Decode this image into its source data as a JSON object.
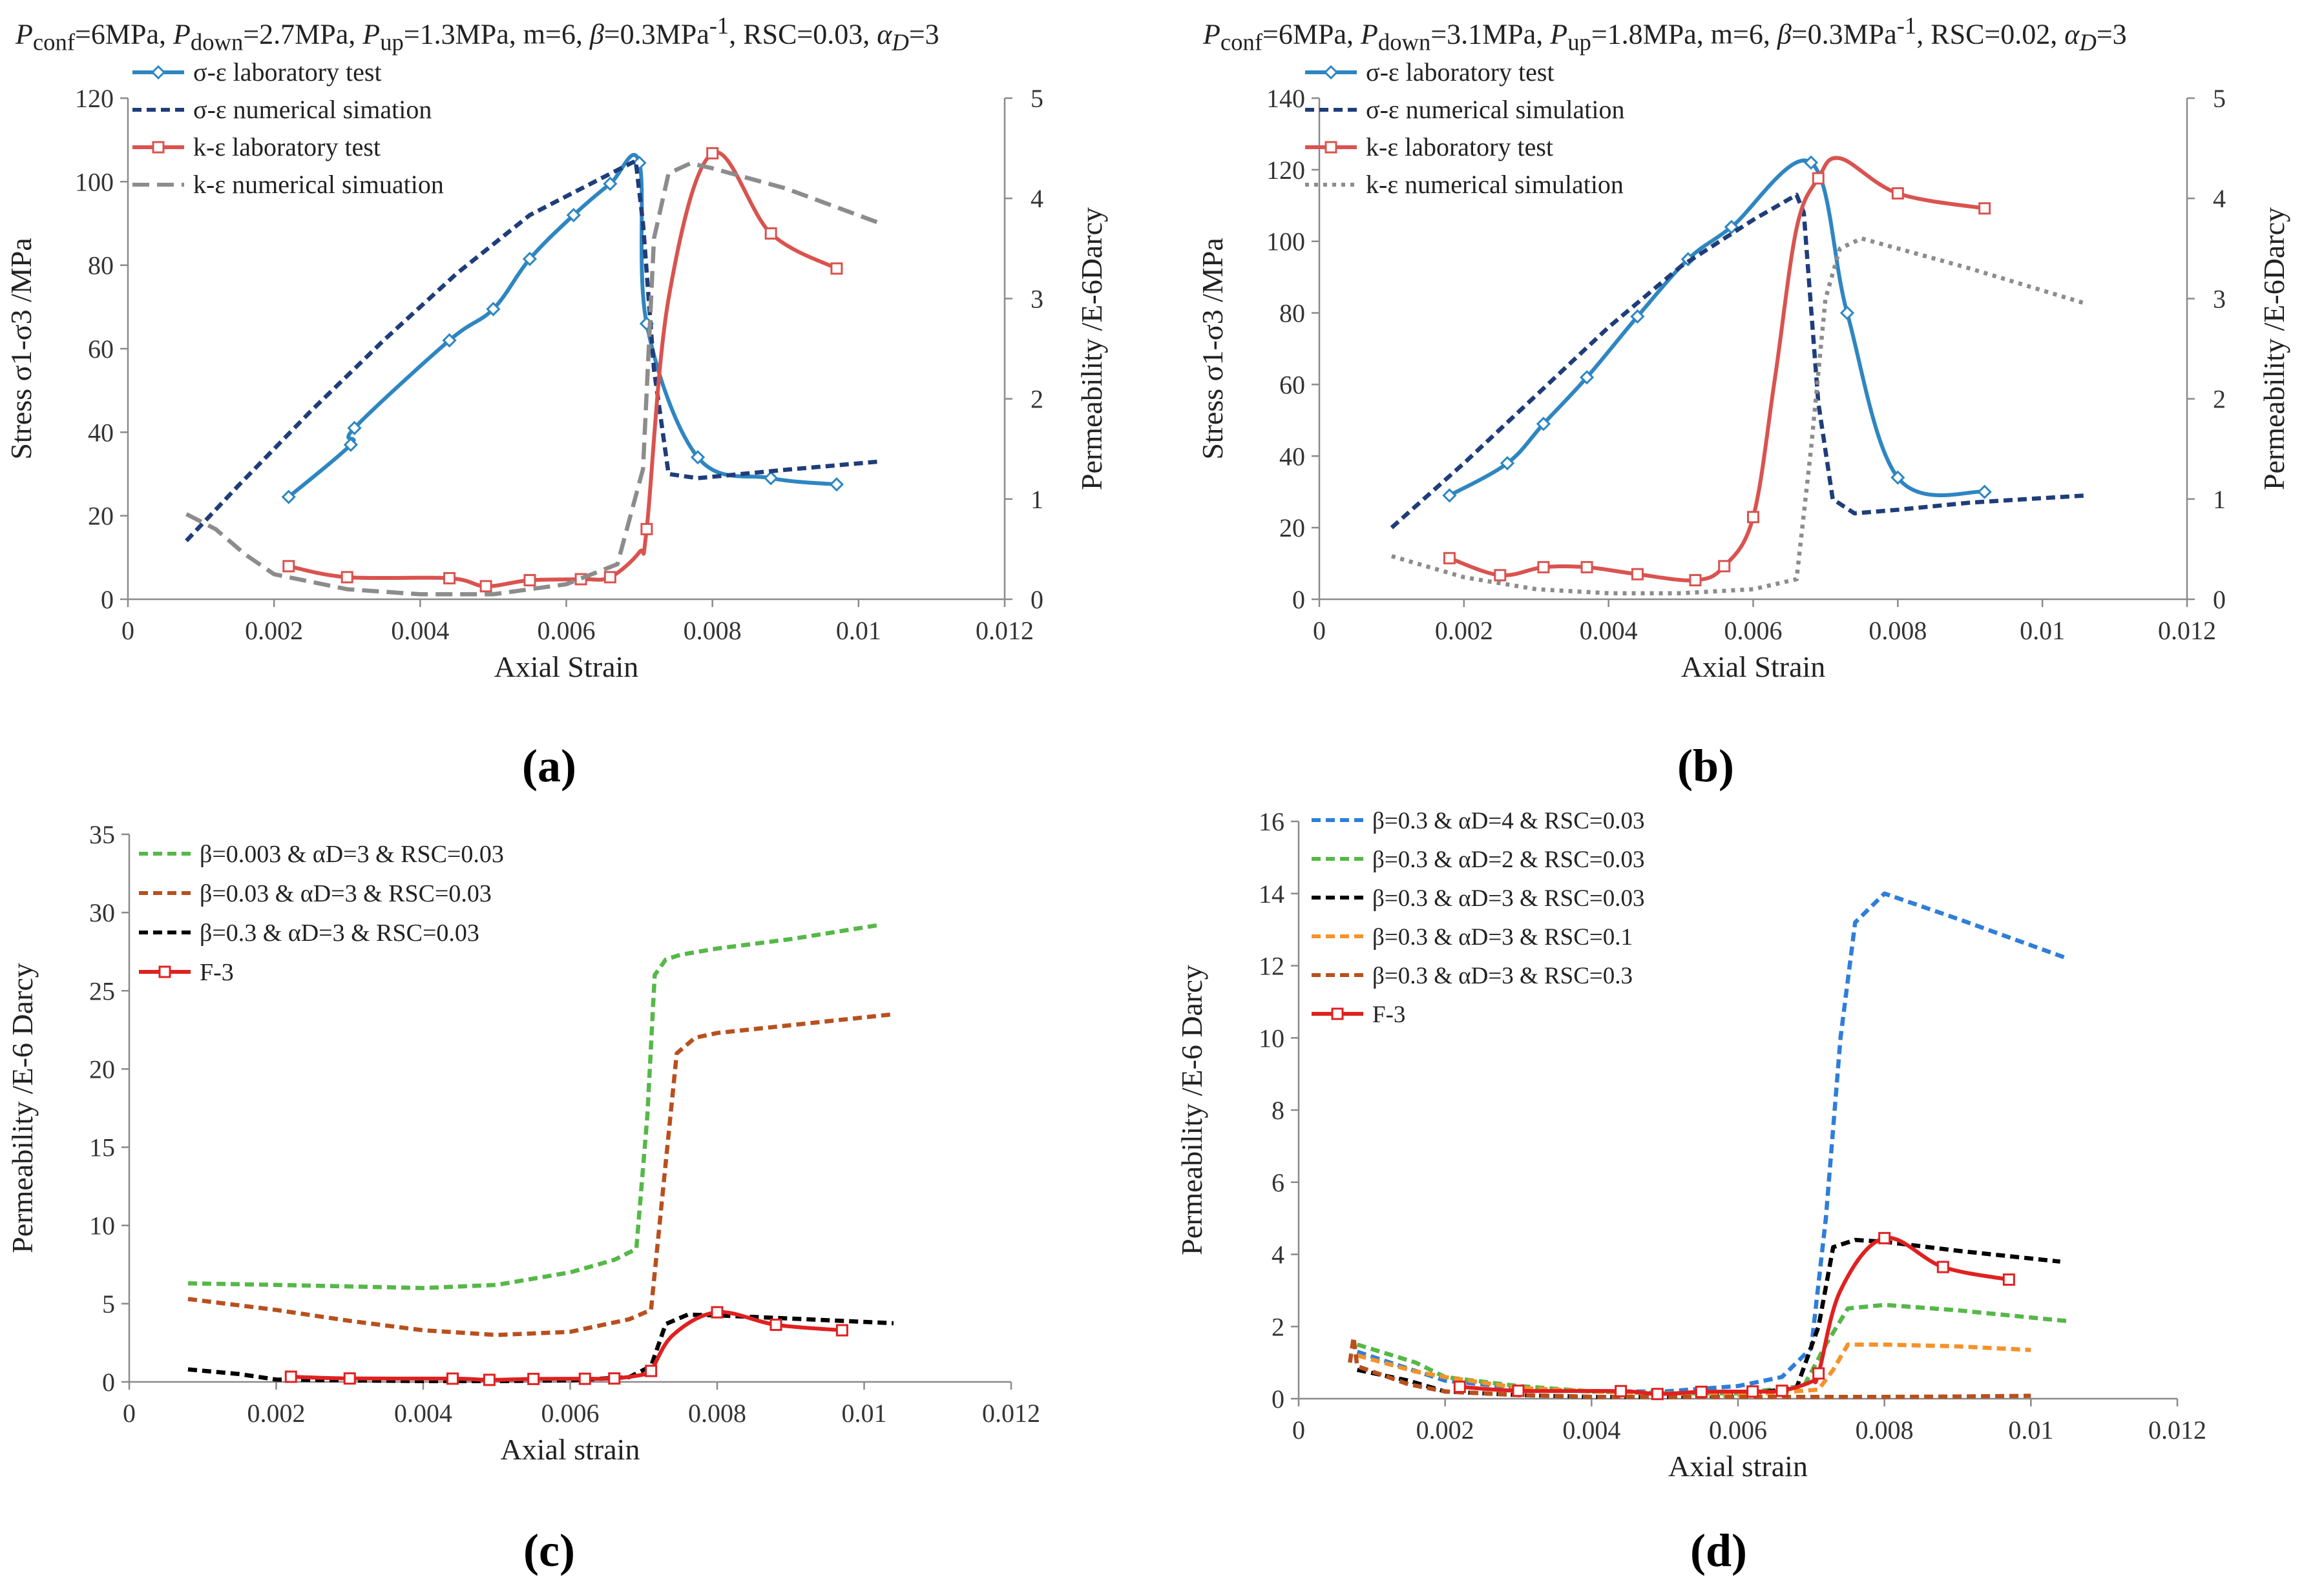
{
  "captions": [
    "(a)",
    "(b)",
    "(c)",
    "(d)"
  ],
  "headers": {
    "a": {
      "conf": "6MPa",
      "down": "2.7MPa",
      "up": "1.3MPa",
      "m": "m=6",
      "beta": "0.3MPa",
      "beta_exp": "-1",
      "rsc": "RSC=0.03",
      "alpha": "3"
    },
    "b": {
      "conf": "6MPa",
      "down": "3.1MPa",
      "up": "1.8MPa",
      "m": "m=6",
      "beta": "0.3MPa",
      "beta_exp": "-1",
      "rsc": "RSC=0.02",
      "alpha": "3"
    }
  },
  "chart_data": [
    {
      "id": "a",
      "type": "line",
      "xlabel": "Axial Strain",
      "ylabel": "Stress σ1-σ3 /MPa",
      "y2label": "Permeability  /E-6Darcy",
      "xlim": [
        0,
        0.012
      ],
      "ylim": [
        0,
        120
      ],
      "y2lim": [
        0,
        5
      ],
      "xticks": [
        0,
        0.002,
        0.004,
        0.006,
        0.008,
        0.01,
        0.012
      ],
      "xtick_labels": [
        "0",
        "0.002",
        "0.004",
        "0.006",
        "0.008",
        "0.01",
        "0.012"
      ],
      "yticks": [
        0,
        20,
        40,
        60,
        80,
        100,
        120
      ],
      "y2ticks": [
        0,
        1,
        2,
        3,
        4,
        5
      ],
      "series": [
        {
          "name": "σ-ε laboratory test",
          "color": "#2e86c1",
          "dash": "solid",
          "marker": "diamond",
          "axis": "y1",
          "smooth": true,
          "x": [
            0.0022,
            0.00305,
            0.0031,
            0.0044,
            0.005,
            0.0055,
            0.0061,
            0.0066,
            0.007,
            0.0071,
            0.0078,
            0.0088,
            0.0097
          ],
          "y": [
            24.5,
            37,
            41,
            62,
            69.5,
            81.5,
            92,
            99.5,
            104.5,
            66,
            34,
            29,
            27.5
          ],
          "mx": [
            0.0022,
            0.00305,
            0.0031,
            0.0044,
            0.005,
            0.0055,
            0.0061,
            0.0066,
            0.007,
            0.0071,
            0.0078,
            0.0088,
            0.0097
          ],
          "my": [
            24.5,
            37,
            41,
            62,
            69.5,
            81.5,
            92,
            99.5,
            104.5,
            66,
            34,
            29,
            27.5
          ]
        },
        {
          "name": "σ-ε numerical simation",
          "color": "#1f3d7a",
          "dash": "dash",
          "marker": "none",
          "axis": "y1",
          "x": [
            0.0008,
            0.0015,
            0.0025,
            0.0035,
            0.0045,
            0.0055,
            0.0065,
            0.00695,
            0.00705,
            0.0072,
            0.0074,
            0.0078,
            0.009,
            0.0103
          ],
          "y": [
            14,
            27,
            45,
            62,
            78,
            92,
            101,
            105,
            90,
            55,
            30,
            29,
            31,
            33
          ]
        },
        {
          "name": "k-ε laboratory test",
          "color": "#d9534f",
          "dash": "solid",
          "marker": "square",
          "axis": "y2",
          "smooth": true,
          "x": [
            0.0022,
            0.003,
            0.0044,
            0.0049,
            0.0055,
            0.0062,
            0.0066,
            0.007,
            0.0071,
            0.0074,
            0.008,
            0.0088,
            0.0097
          ],
          "y": [
            0.33,
            0.22,
            0.21,
            0.13,
            0.19,
            0.2,
            0.22,
            0.47,
            0.7,
            3.0,
            4.45,
            3.65,
            3.3
          ],
          "mx": [
            0.0022,
            0.003,
            0.0044,
            0.0049,
            0.0055,
            0.0062,
            0.0066,
            0.0071,
            0.008,
            0.0088,
            0.0097
          ],
          "my": [
            0.33,
            0.22,
            0.21,
            0.13,
            0.19,
            0.2,
            0.22,
            0.7,
            4.45,
            3.65,
            3.3
          ]
        },
        {
          "name": "k-ε numerical simuation",
          "color": "#8c8c8c",
          "dash": "longdash",
          "marker": "none",
          "axis": "y2",
          "x": [
            0.0008,
            0.0012,
            0.0016,
            0.002,
            0.003,
            0.004,
            0.005,
            0.006,
            0.0067,
            0.00705,
            0.0072,
            0.0074,
            0.0077,
            0.008,
            0.009,
            0.0103
          ],
          "y": [
            0.85,
            0.7,
            0.45,
            0.25,
            0.1,
            0.05,
            0.05,
            0.15,
            0.35,
            1.3,
            3.6,
            4.25,
            4.35,
            4.3,
            4.1,
            3.75
          ]
        }
      ]
    },
    {
      "id": "b",
      "type": "line",
      "xlabel": "Axial Strain",
      "ylabel": "Stress σ1-σ3 /MPa",
      "y2label": "Permeability  /E-6Darcy",
      "xlim": [
        0,
        0.012
      ],
      "ylim": [
        0,
        140
      ],
      "y2lim": [
        0,
        5
      ],
      "xticks": [
        0,
        0.002,
        0.004,
        0.006,
        0.008,
        0.01,
        0.012
      ],
      "xtick_labels": [
        "0",
        "0.002",
        "0.004",
        "0.006",
        "0.008",
        "0.01",
        "0.012"
      ],
      "yticks": [
        0,
        20,
        40,
        60,
        80,
        100,
        120,
        140
      ],
      "y2ticks": [
        0,
        1,
        2,
        3,
        4,
        5
      ],
      "series": [
        {
          "name": "σ-ε laboratory test",
          "color": "#2e86c1",
          "dash": "solid",
          "marker": "diamond",
          "axis": "y1",
          "smooth": true,
          "x": [
            0.0018,
            0.0026,
            0.0031,
            0.0037,
            0.0044,
            0.0051,
            0.0057,
            0.0068,
            0.0073,
            0.008,
            0.0092
          ],
          "y": [
            29,
            38,
            49,
            62,
            79,
            95,
            104,
            122,
            80,
            34,
            30
          ],
          "mx": [
            0.0018,
            0.0026,
            0.0031,
            0.0037,
            0.0044,
            0.0051,
            0.0057,
            0.0068,
            0.0073,
            0.008,
            0.0092
          ],
          "my": [
            29,
            38,
            49,
            62,
            79,
            95,
            104,
            122,
            80,
            34,
            30
          ]
        },
        {
          "name": "σ-ε numerical simulation",
          "color": "#1f3d7a",
          "dash": "dash",
          "marker": "none",
          "axis": "y1",
          "x": [
            0.001,
            0.002,
            0.003,
            0.004,
            0.005,
            0.006,
            0.0066,
            0.0067,
            0.0069,
            0.0071,
            0.0074,
            0.008,
            0.009,
            0.0106
          ],
          "y": [
            20,
            38,
            57,
            76,
            93,
            106,
            113,
            108,
            55,
            28,
            24,
            25,
            27,
            29
          ]
        },
        {
          "name": "k-ε laboratory test",
          "color": "#d9534f",
          "dash": "solid",
          "marker": "square",
          "axis": "y2",
          "smooth": true,
          "x": [
            0.0018,
            0.0025,
            0.0031,
            0.0037,
            0.0044,
            0.0052,
            0.0056,
            0.006,
            0.0063,
            0.0066,
            0.0069,
            0.0072,
            0.008,
            0.0092
          ],
          "y": [
            0.41,
            0.24,
            0.32,
            0.32,
            0.25,
            0.19,
            0.33,
            0.82,
            2.2,
            3.7,
            4.2,
            4.4,
            4.05,
            3.9
          ],
          "mx": [
            0.0018,
            0.0025,
            0.0031,
            0.0037,
            0.0044,
            0.0052,
            0.0056,
            0.006,
            0.0069,
            0.008,
            0.0092
          ],
          "my": [
            0.41,
            0.24,
            0.32,
            0.32,
            0.25,
            0.19,
            0.33,
            0.82,
            4.2,
            4.05,
            3.9
          ]
        },
        {
          "name": "k-ε numerical simulation",
          "color": "#8c8c8c",
          "dash": "dot",
          "marker": "none",
          "axis": "y2",
          "x": [
            0.001,
            0.002,
            0.003,
            0.004,
            0.005,
            0.006,
            0.0066,
            0.0068,
            0.007,
            0.0072,
            0.0075,
            0.008,
            0.009,
            0.0106
          ],
          "y": [
            0.43,
            0.22,
            0.1,
            0.06,
            0.06,
            0.1,
            0.2,
            1.5,
            3.0,
            3.5,
            3.6,
            3.5,
            3.3,
            2.95
          ]
        }
      ]
    },
    {
      "id": "c",
      "type": "line",
      "xlabel": "Axial strain",
      "ylabel": "Permeability /E-6 Darcy",
      "xlim": [
        0,
        0.012
      ],
      "ylim": [
        0,
        35
      ],
      "xticks": [
        0,
        0.002,
        0.004,
        0.006,
        0.008,
        0.01,
        0.012
      ],
      "xtick_labels": [
        "0",
        "0.002",
        "0.004",
        "0.006",
        "0.008",
        "0.01",
        "0.012"
      ],
      "yticks": [
        0,
        5,
        10,
        15,
        20,
        25,
        30,
        35
      ],
      "series": [
        {
          "name": "β=0.003 & αD=3 & RSC=0.03",
          "color": "#55b848",
          "dash": "dash",
          "marker": "none",
          "x": [
            0.0008,
            0.002,
            0.003,
            0.004,
            0.005,
            0.006,
            0.0066,
            0.0069,
            0.00705,
            0.00715,
            0.0073,
            0.0075,
            0.008,
            0.009,
            0.0102
          ],
          "y": [
            6.3,
            6.2,
            6.1,
            6.0,
            6.2,
            7.0,
            7.8,
            8.5,
            17,
            26,
            27,
            27.3,
            27.7,
            28.3,
            29.2
          ]
        },
        {
          "name": "β=0.03 & αD=3 & RSC=0.03",
          "color": "#b8501e",
          "dash": "dash",
          "marker": "none",
          "x": [
            0.0008,
            0.002,
            0.003,
            0.004,
            0.005,
            0.006,
            0.0068,
            0.0071,
            0.0073,
            0.00745,
            0.0077,
            0.008,
            0.009,
            0.0104
          ],
          "y": [
            5.3,
            4.6,
            3.9,
            3.3,
            3.0,
            3.2,
            4.0,
            4.6,
            14,
            21,
            22,
            22.3,
            22.8,
            23.5
          ]
        },
        {
          "name": "β=0.3 & αD=3 & RSC=0.03",
          "color": "#000000",
          "dash": "dash",
          "marker": "none",
          "x": [
            0.0008,
            0.0015,
            0.002,
            0.003,
            0.004,
            0.005,
            0.006,
            0.0068,
            0.0071,
            0.0073,
            0.0076,
            0.008,
            0.009,
            0.0104
          ],
          "y": [
            0.8,
            0.5,
            0.15,
            0.1,
            0.05,
            0.05,
            0.1,
            0.3,
            1.0,
            3.7,
            4.3,
            4.25,
            4.05,
            3.75
          ]
        },
        {
          "name": "F-3",
          "color": "#e02020",
          "dash": "solid",
          "marker": "square",
          "smooth": true,
          "x": [
            0.0022,
            0.003,
            0.0044,
            0.0049,
            0.0055,
            0.0062,
            0.0066,
            0.007,
            0.0071,
            0.0074,
            0.008,
            0.0088,
            0.0097
          ],
          "y": [
            0.33,
            0.22,
            0.21,
            0.13,
            0.19,
            0.2,
            0.22,
            0.47,
            0.7,
            3.0,
            4.45,
            3.65,
            3.3
          ],
          "mx": [
            0.0022,
            0.003,
            0.0044,
            0.0049,
            0.0055,
            0.0062,
            0.0066,
            0.0071,
            0.008,
            0.0088,
            0.0097
          ],
          "my": [
            0.33,
            0.22,
            0.21,
            0.13,
            0.19,
            0.2,
            0.22,
            0.7,
            4.45,
            3.65,
            3.3
          ]
        }
      ]
    },
    {
      "id": "d",
      "type": "line",
      "xlabel": "Axial strain",
      "ylabel": "Permeability /E-6 Darcy",
      "xlim": [
        0,
        0.012
      ],
      "ylim": [
        0,
        16
      ],
      "xticks": [
        0,
        0.002,
        0.004,
        0.006,
        0.008,
        0.01,
        0.012
      ],
      "xtick_labels": [
        "0",
        "0.002",
        "0.004",
        "0.006",
        "0.008",
        "0.01",
        "0.012"
      ],
      "yticks": [
        0,
        2,
        4,
        6,
        8,
        10,
        12,
        14,
        16
      ],
      "series": [
        {
          "name": "β=0.3 & αD=4 & RSC=0.03",
          "color": "#2f7ed8",
          "dash": "dash",
          "marker": "none",
          "x": [
            0.0008,
            0.002,
            0.003,
            0.004,
            0.005,
            0.006,
            0.0066,
            0.007,
            0.0072,
            0.0074,
            0.0076,
            0.008,
            0.009,
            0.0105
          ],
          "y": [
            1.3,
            0.5,
            0.3,
            0.2,
            0.2,
            0.35,
            0.6,
            1.4,
            5,
            10,
            13.2,
            14,
            13.3,
            12.2
          ]
        },
        {
          "name": "β=0.3 & αD=2 & RSC=0.03",
          "color": "#55b848",
          "dash": "dash",
          "marker": "none",
          "x": [
            0.0008,
            0.0016,
            0.002,
            0.003,
            0.004,
            0.005,
            0.006,
            0.0069,
            0.0072,
            0.0075,
            0.008,
            0.009,
            0.0105
          ],
          "y": [
            1.5,
            1.0,
            0.6,
            0.35,
            0.2,
            0.15,
            0.15,
            0.35,
            1.5,
            2.5,
            2.6,
            2.45,
            2.15
          ]
        },
        {
          "name": "β=0.3 & αD=3 & RSC=0.03",
          "color": "#000000",
          "dash": "dash",
          "marker": "none",
          "x": [
            0.0008,
            0.0015,
            0.002,
            0.003,
            0.004,
            0.005,
            0.006,
            0.0068,
            0.0071,
            0.0073,
            0.0076,
            0.008,
            0.009,
            0.0104
          ],
          "y": [
            0.8,
            0.5,
            0.2,
            0.1,
            0.05,
            0.05,
            0.1,
            0.3,
            2.0,
            4.2,
            4.4,
            4.35,
            4.1,
            3.8
          ]
        },
        {
          "name": "β=0.3 & αD=3 & RSC=0.1",
          "color": "#f5922a",
          "dash": "dash",
          "marker": "none",
          "x": [
            0.0008,
            0.0016,
            0.002,
            0.003,
            0.004,
            0.005,
            0.006,
            0.0071,
            0.0073,
            0.0075,
            0.008,
            0.009,
            0.01
          ],
          "y": [
            1.2,
            0.75,
            0.6,
            0.3,
            0.2,
            0.15,
            0.1,
            0.25,
            0.8,
            1.5,
            1.5,
            1.45,
            1.35
          ]
        },
        {
          "name": "β=0.3 & αD=3 & RSC=0.3",
          "color": "#b8501e",
          "dash": "dash",
          "marker": "none",
          "x": [
            0.0007,
            0.00075,
            0.0008,
            0.0015,
            0.002,
            0.003,
            0.004,
            0.005,
            0.006,
            0.007,
            0.008,
            0.009,
            0.01
          ],
          "y": [
            1.0,
            1.7,
            0.9,
            0.4,
            0.2,
            0.1,
            0.05,
            0.05,
            0.05,
            0.05,
            0.05,
            0.06,
            0.08
          ]
        },
        {
          "name": "F-3",
          "color": "#e02020",
          "dash": "solid",
          "marker": "square",
          "smooth": true,
          "x": [
            0.0022,
            0.003,
            0.0044,
            0.0049,
            0.0055,
            0.0062,
            0.0066,
            0.007,
            0.0071,
            0.0074,
            0.008,
            0.0088,
            0.0097
          ],
          "y": [
            0.33,
            0.22,
            0.21,
            0.13,
            0.19,
            0.2,
            0.22,
            0.47,
            0.7,
            3.0,
            4.45,
            3.65,
            3.3
          ],
          "mx": [
            0.0022,
            0.003,
            0.0044,
            0.0049,
            0.0055,
            0.0062,
            0.0066,
            0.0071,
            0.008,
            0.0088,
            0.0097
          ],
          "my": [
            0.33,
            0.22,
            0.21,
            0.13,
            0.19,
            0.2,
            0.22,
            0.7,
            4.45,
            3.65,
            3.3
          ]
        }
      ]
    }
  ]
}
